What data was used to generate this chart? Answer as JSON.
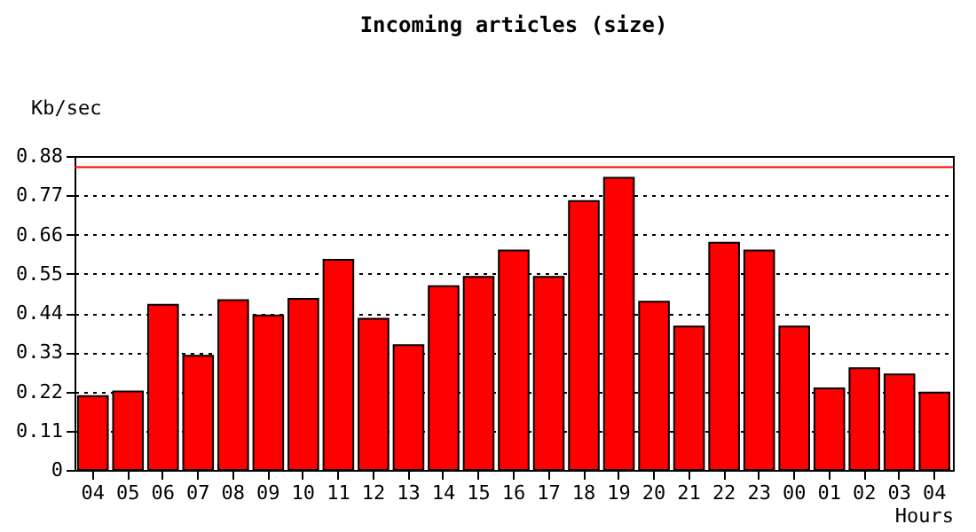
{
  "chart_data": {
    "type": "bar",
    "title": "Incoming articles (size)",
    "xlabel": "Hours",
    "ylabel": "Kb/sec",
    "categories": [
      "04",
      "05",
      "06",
      "07",
      "08",
      "09",
      "10",
      "11",
      "12",
      "13",
      "14",
      "15",
      "16",
      "17",
      "18",
      "19",
      "20",
      "21",
      "22",
      "23",
      "00",
      "01",
      "02",
      "03",
      "04"
    ],
    "values": [
      0.207,
      0.22,
      0.463,
      0.32,
      0.476,
      0.433,
      0.48,
      0.589,
      0.424,
      0.35,
      0.515,
      0.541,
      0.615,
      0.541,
      0.754,
      0.819,
      0.472,
      0.402,
      0.637,
      0.615,
      0.402,
      0.229,
      0.285,
      0.268,
      0.217
    ],
    "color": "#ff0000",
    "ylim": [
      0,
      0.88
    ],
    "yticks": [
      0,
      0.11,
      0.22,
      0.33,
      0.44,
      0.55,
      0.66,
      0.77,
      0.88
    ],
    "grid": "y",
    "ref_lines": [
      {
        "axis": "y",
        "value": 0.849,
        "color": "#ff0000"
      }
    ]
  }
}
